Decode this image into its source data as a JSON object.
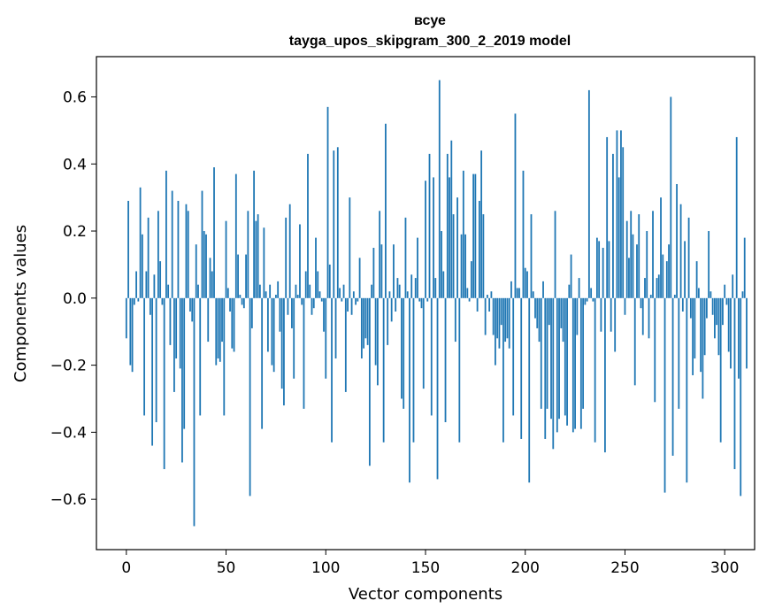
{
  "chart_data": {
    "type": "bar",
    "title": "всуе",
    "subtitle": "tayga_upos_skipgram_300_2_2019 model",
    "xlabel": "Vector components",
    "ylabel": "Components values",
    "xlim": [
      -15,
      315
    ],
    "ylim": [
      -0.75,
      0.72
    ],
    "xticks": [
      0,
      50,
      100,
      150,
      200,
      250,
      300
    ],
    "xtick_labels": [
      "0",
      "50",
      "100",
      "150",
      "200",
      "250",
      "300"
    ],
    "yticks": [
      -0.6,
      -0.4,
      -0.2,
      0.0,
      0.2,
      0.4,
      0.6
    ],
    "ytick_labels": [
      "−0.6",
      "−0.4",
      "−0.2",
      "0.0",
      "0.2",
      "0.4",
      "0.6"
    ],
    "bar_color": "#1f77b4",
    "grid": false,
    "values": [
      -0.12,
      0.29,
      -0.2,
      -0.22,
      -0.02,
      0.08,
      -0.01,
      0.33,
      0.19,
      -0.35,
      0.08,
      0.24,
      -0.05,
      -0.44,
      0.07,
      -0.37,
      0.26,
      0.11,
      -0.02,
      -0.51,
      0.38,
      0.04,
      -0.14,
      0.32,
      -0.28,
      -0.18,
      0.29,
      -0.21,
      -0.49,
      -0.39,
      0.28,
      0.26,
      -0.04,
      -0.07,
      -0.68,
      0.16,
      0.04,
      -0.35,
      0.32,
      0.2,
      0.19,
      -0.13,
      0.12,
      0.08,
      0.39,
      -0.2,
      -0.18,
      -0.19,
      -0.13,
      -0.35,
      0.23,
      0.03,
      -0.04,
      -0.15,
      -0.16,
      0.37,
      0.13,
      0.01,
      -0.02,
      -0.03,
      0.13,
      0.26,
      -0.59,
      -0.09,
      0.38,
      0.23,
      0.25,
      0.04,
      -0.39,
      0.21,
      0.02,
      -0.16,
      0.04,
      -0.2,
      -0.22,
      0.01,
      0.05,
      -0.1,
      -0.27,
      -0.32,
      0.24,
      -0.05,
      0.28,
      -0.09,
      -0.24,
      0.04,
      0.01,
      0.22,
      -0.02,
      -0.33,
      0.08,
      0.43,
      0.04,
      -0.05,
      -0.03,
      0.18,
      0.08,
      0.02,
      -0.01,
      -0.1,
      -0.24,
      0.57,
      0.1,
      -0.43,
      0.44,
      -0.18,
      0.45,
      0.03,
      -0.01,
      0.04,
      -0.28,
      -0.04,
      0.3,
      -0.05,
      0.02,
      -0.02,
      -0.01,
      0.12,
      -0.18,
      -0.15,
      -0.12,
      -0.14,
      -0.5,
      0.04,
      0.15,
      -0.2,
      -0.26,
      0.26,
      0.16,
      -0.43,
      0.52,
      -0.14,
      0.02,
      -0.07,
      0.16,
      -0.04,
      0.06,
      0.04,
      -0.3,
      -0.33,
      0.24,
      0.02,
      -0.55,
      0.07,
      -0.43,
      0.06,
      0.18,
      -0.01,
      -0.03,
      -0.27,
      0.35,
      -0.01,
      0.43,
      -0.35,
      0.36,
      0.06,
      -0.54,
      0.65,
      0.2,
      0.08,
      -0.37,
      0.43,
      0.36,
      0.47,
      0.25,
      -0.13,
      0.3,
      -0.43,
      0.19,
      0.38,
      0.19,
      0.03,
      -0.01,
      0.11,
      0.37,
      0.37,
      -0.04,
      0.29,
      0.44,
      0.25,
      -0.11,
      0.01,
      -0.04,
      0.02,
      -0.11,
      -0.2,
      -0.12,
      -0.15,
      -0.08,
      -0.43,
      -0.13,
      -0.12,
      -0.15,
      0.05,
      -0.35,
      0.55,
      0.03,
      0.03,
      -0.42,
      0.38,
      0.09,
      0.08,
      -0.55,
      0.25,
      0.02,
      -0.06,
      -0.09,
      -0.13,
      -0.33,
      0.05,
      -0.42,
      -0.33,
      -0.08,
      -0.36,
      -0.45,
      0.26,
      -0.4,
      -0.36,
      -0.09,
      -0.13,
      -0.35,
      -0.38,
      0.04,
      0.13,
      -0.4,
      -0.39,
      -0.11,
      0.06,
      -0.39,
      -0.33,
      -0.02,
      -0.01,
      0.62,
      0.03,
      -0.01,
      -0.43,
      0.18,
      0.17,
      -0.1,
      0.15,
      -0.46,
      0.48,
      0.17,
      -0.1,
      0.43,
      -0.16,
      0.5,
      0.36,
      0.5,
      0.45,
      -0.05,
      0.23,
      0.12,
      0.26,
      0.19,
      -0.26,
      0.16,
      0.25,
      -0.03,
      -0.11,
      0.06,
      0.2,
      -0.12,
      0.01,
      0.26,
      -0.31,
      0.06,
      0.07,
      0.3,
      0.13,
      -0.58,
      0.11,
      0.16,
      0.6,
      -0.47,
      0.01,
      0.34,
      -0.33,
      0.28,
      -0.04,
      0.17,
      -0.55,
      0.24,
      -0.06,
      -0.23,
      -0.18,
      0.11,
      0.03,
      -0.22,
      -0.3,
      -0.17,
      -0.06,
      0.2,
      0.02,
      -0.05,
      -0.12,
      -0.08,
      -0.17,
      -0.43,
      -0.08,
      0.04,
      -0.02,
      -0.16,
      -0.21,
      0.07,
      -0.51,
      0.48,
      -0.24,
      -0.59,
      0.02,
      0.18,
      -0.21
    ]
  }
}
